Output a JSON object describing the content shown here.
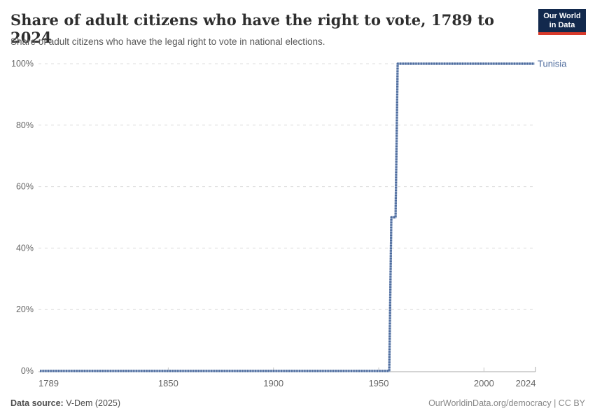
{
  "header": {
    "title": "Share of adult citizens who have the right to vote, 1789 to 2024",
    "subtitle": "Share of adult citizens who have the legal right to vote in national elections.",
    "logo": {
      "line1": "Our World",
      "line2": "in Data",
      "bg_color": "#12294d",
      "accent_color": "#d93a2b"
    }
  },
  "chart_data": {
    "type": "line",
    "style": "step",
    "title": "Share of adult citizens who have the right to vote, 1789 to 2024",
    "entity_label": "Tunisia",
    "x_tick_years": [
      1789,
      1850,
      1900,
      1950,
      2000,
      2024
    ],
    "x_range": [
      1789,
      2024
    ],
    "y_ticks": [
      0,
      20,
      40,
      60,
      80,
      100
    ],
    "y_tick_suffix": "%",
    "y_range": [
      0,
      100
    ],
    "grid": "horizontal-dashed",
    "legend_position": "line-end-label",
    "series": [
      {
        "name": "Tunisia",
        "color": "#4c6a9c",
        "color_light": "#8ea4c6",
        "segments": [
          {
            "from_year": 1789,
            "to_year": 1955,
            "value": 0
          },
          {
            "from_year": 1956,
            "to_year": 1958,
            "value": 50
          },
          {
            "from_year": 1959,
            "to_year": 2024,
            "value": 100
          }
        ]
      }
    ],
    "colors": {
      "grid": "#dcdcdc",
      "axis": "#a8a8a8",
      "tick": "#c8c8c8",
      "tick_label": "#666666"
    }
  },
  "footer": {
    "source_label": "Data source:",
    "source_value": "V-Dem (2025)",
    "attribution": "OurWorldinData.org/democracy | CC BY"
  }
}
